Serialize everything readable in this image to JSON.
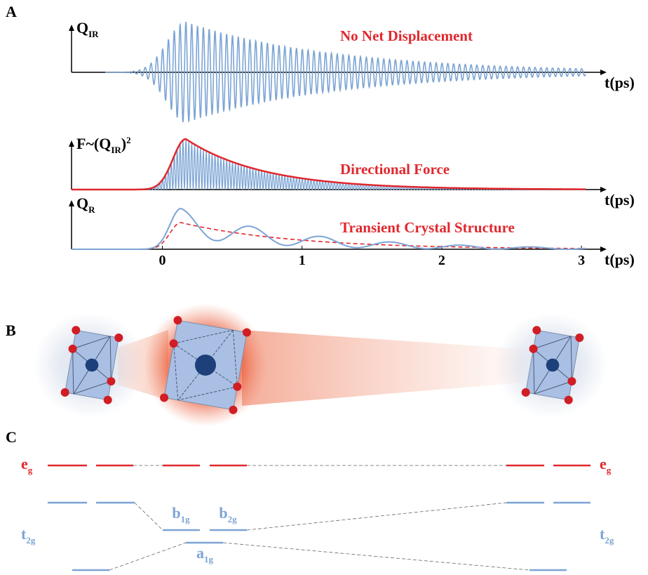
{
  "panel_a": {
    "label": "A",
    "plots": [
      {
        "ylabel": {
          "main": "Q",
          "sub": "IR"
        },
        "annotation": "No Net Displacement",
        "xlabel": "t(ps)"
      },
      {
        "ylabel": {
          "main": "F~(Q",
          "sub": "IR",
          "after": ")",
          "sup": "2"
        },
        "annotation": "Directional Force",
        "xlabel": "t(ps)"
      },
      {
        "ylabel": {
          "main": "Q",
          "sub": "R"
        },
        "annotation": "Transient Crystal Structure",
        "xlabel": "t(ps)"
      }
    ],
    "xticks": [
      0,
      1,
      2,
      3
    ],
    "xlim": [
      -0.65,
      3.18
    ]
  },
  "panel_b": {
    "label": "B"
  },
  "panel_c": {
    "label": "C",
    "eg": {
      "main": "e",
      "sub": "g"
    },
    "t2g": {
      "main": "t",
      "sub": "2g"
    },
    "b1g": {
      "main": "b",
      "sub": "1g"
    },
    "b2g": {
      "main": "b",
      "sub": "2g"
    },
    "a1g": {
      "main": "a",
      "sub": "1g"
    }
  }
}
